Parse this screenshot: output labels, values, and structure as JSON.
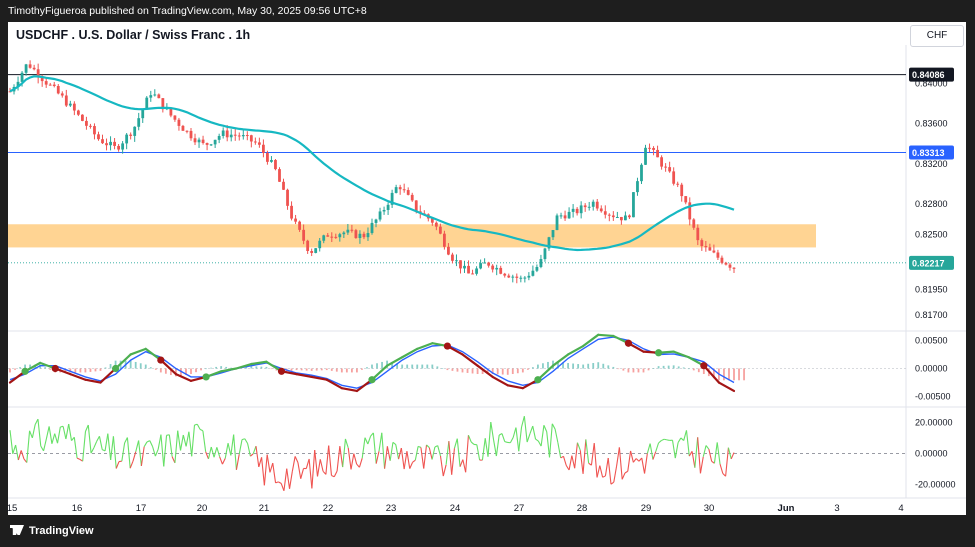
{
  "header": {
    "publisher_text": "TimothyFigueroa published on TradingView.com, May 30, 2025 09:56 UTC+8"
  },
  "footer": {
    "logo_text": "TradingView"
  },
  "chart_header": {
    "symbol_title": "USDCHF . U.S. Dollar / Swiss Franc . 1h",
    "currency_button": "CHF"
  },
  "chart_data": [
    {
      "type": "candlestick",
      "title": "USDCHF . U.S. Dollar / Swiss Franc . 1h",
      "ylim": [
        0.8155,
        0.8438
      ],
      "price_ticks": [
        "0.84000",
        "0.83600",
        "0.83200",
        "0.82800",
        "0.82500",
        "0.81950",
        "0.81700"
      ],
      "price_tick_values": [
        0.84,
        0.836,
        0.832,
        0.828,
        0.825,
        0.8195,
        0.817
      ],
      "x_ticks": [
        "15",
        "16",
        "17",
        "20",
        "21",
        "22",
        "23",
        "24",
        "27",
        "28",
        "29",
        "30",
        "Jun",
        "3",
        "4"
      ],
      "horizontal_lines": [
        {
          "label": "0.84086",
          "value": 0.84086,
          "color": "#131722"
        },
        {
          "label": "0.83313",
          "value": 0.83313,
          "color": "#2962ff"
        },
        {
          "label": "0.82217",
          "value": 0.82217,
          "color": "#26a69a"
        }
      ],
      "zone": {
        "low": 0.8237,
        "high": 0.826,
        "color": "#ffcc80"
      },
      "moving_average_color": "#16b8c2",
      "colors": {
        "up": "#26a69a",
        "down": "#ef5350"
      },
      "path_points": [
        [
          "15",
          0.8392,
          0
        ],
        [
          "15",
          0.842,
          4
        ],
        [
          "15",
          0.8402,
          8
        ],
        [
          "16",
          0.8385,
          12
        ],
        [
          "16",
          0.8365,
          16
        ],
        [
          "16",
          0.8345,
          20
        ],
        [
          "16",
          0.8335,
          24
        ],
        [
          "17",
          0.8355,
          28
        ],
        [
          "17",
          0.8392,
          32
        ],
        [
          "17",
          0.837,
          36
        ],
        [
          "17",
          0.8352,
          40
        ],
        [
          "20",
          0.8338,
          44
        ],
        [
          "20",
          0.835,
          48
        ],
        [
          "20",
          0.8348,
          52
        ],
        [
          "20",
          0.834,
          56
        ],
        [
          "21",
          0.8315,
          60
        ],
        [
          "21",
          0.8265,
          64
        ],
        [
          "21",
          0.8232,
          68
        ],
        [
          "22",
          0.825,
          72
        ],
        [
          "22",
          0.8252,
          76
        ],
        [
          "22",
          0.8248,
          80
        ],
        [
          "23",
          0.827,
          84
        ],
        [
          "23",
          0.83,
          88
        ],
        [
          "23",
          0.8275,
          92
        ],
        [
          "23",
          0.8262,
          96
        ],
        [
          "24",
          0.8228,
          100
        ],
        [
          "24",
          0.821,
          104
        ],
        [
          "24",
          0.8222,
          108
        ],
        [
          "27",
          0.8212,
          112
        ],
        [
          "27",
          0.8205,
          116
        ],
        [
          "27",
          0.822,
          120
        ],
        [
          "28",
          0.8268,
          124
        ],
        [
          "28",
          0.8272,
          128
        ],
        [
          "28",
          0.8282,
          132
        ],
        [
          "28",
          0.827,
          136
        ],
        [
          "29",
          0.8265,
          140
        ],
        [
          "29",
          0.834,
          144
        ],
        [
          "29",
          0.8318,
          148
        ],
        [
          "29",
          0.8292,
          152
        ],
        [
          "30",
          0.824,
          156
        ],
        [
          "30",
          0.8228,
          160
        ],
        [
          "30",
          0.8217,
          164
        ]
      ]
    },
    {
      "type": "line",
      "title": "",
      "ylim": [
        -0.0065,
        0.0065
      ],
      "y_ticks": [
        "0.00500",
        "0.00000",
        "-0.00500"
      ],
      "y_tick_values": [
        0.005,
        0.0,
        -0.005
      ],
      "series": [
        {
          "values": [
            -0.0025,
            -0.0005,
            0.001,
            0.0,
            -0.001,
            -0.002,
            -0.0025,
            0.0,
            0.0025,
            0.0035,
            0.0015,
            -0.001,
            -0.0022,
            -0.0015,
            -0.0005,
            0.0,
            0.0008,
            0.0012,
            -0.0005,
            -0.001,
            -0.0015,
            -0.002,
            -0.0035,
            -0.004,
            -0.002,
            0.0005,
            0.002,
            0.0035,
            0.0045,
            0.004,
            0.0025,
            0.0005,
            -0.0015,
            -0.003,
            -0.0035,
            -0.002,
            0.0005,
            0.0025,
            0.004,
            0.006,
            0.0058,
            0.0045,
            0.003,
            0.0028,
            0.003,
            0.002,
            0.0005,
            -0.0025,
            -0.004
          ]
        },
        {
          "values": [
            -0.002,
            -0.001,
            0.0005,
            0.0005,
            -0.0005,
            -0.0015,
            -0.0022,
            -0.001,
            0.0015,
            0.003,
            0.002,
            0.0,
            -0.0015,
            -0.0015,
            -0.0008,
            0.0,
            0.0005,
            0.001,
            0.0,
            -0.0008,
            -0.0012,
            -0.0018,
            -0.003,
            -0.0035,
            -0.0025,
            -0.0005,
            0.0015,
            0.003,
            0.004,
            0.0042,
            0.003,
            0.0012,
            -0.0008,
            -0.0022,
            -0.003,
            -0.0025,
            -0.0005,
            0.0018,
            0.0035,
            0.0052,
            0.0056,
            0.005,
            0.0035,
            0.0025,
            0.0026,
            0.002,
            0.0012,
            -0.001,
            -0.0025
          ]
        }
      ]
    },
    {
      "type": "line",
      "title": "",
      "ylim": [
        -28,
        28
      ],
      "y_ticks": [
        "20.00000",
        "0.00000",
        "-20.00000"
      ],
      "y_tick_values": [
        20,
        0,
        -20
      ]
    }
  ]
}
